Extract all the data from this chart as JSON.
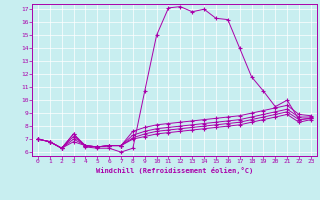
{
  "xlabel": "Windchill (Refroidissement éolien,°C)",
  "background_color": "#c8eef0",
  "line_color": "#aa00aa",
  "xlim": [
    -0.5,
    23.5
  ],
  "ylim": [
    5.7,
    17.4
  ],
  "yticks": [
    6,
    7,
    8,
    9,
    10,
    11,
    12,
    13,
    14,
    15,
    16,
    17
  ],
  "xticks": [
    0,
    1,
    2,
    3,
    4,
    5,
    6,
    7,
    8,
    9,
    10,
    11,
    12,
    13,
    14,
    15,
    16,
    17,
    18,
    19,
    20,
    21,
    22,
    23
  ],
  "series": [
    [
      7.0,
      6.8,
      6.3,
      7.4,
      6.4,
      6.3,
      6.3,
      6.0,
      6.3,
      10.7,
      15.0,
      17.1,
      17.2,
      16.8,
      17.0,
      16.3,
      16.2,
      14.0,
      11.8,
      10.7,
      9.5,
      10.0,
      8.5,
      8.6
    ],
    [
      7.0,
      6.8,
      6.3,
      7.4,
      6.5,
      6.4,
      6.5,
      6.5,
      7.6,
      7.9,
      8.1,
      8.2,
      8.3,
      8.4,
      8.5,
      8.6,
      8.7,
      8.8,
      9.0,
      9.2,
      9.4,
      9.6,
      8.9,
      8.8
    ],
    [
      7.0,
      6.8,
      6.3,
      7.2,
      6.5,
      6.4,
      6.5,
      6.5,
      7.3,
      7.6,
      7.8,
      7.9,
      8.0,
      8.1,
      8.2,
      8.3,
      8.4,
      8.5,
      8.7,
      8.9,
      9.1,
      9.3,
      8.7,
      8.7
    ],
    [
      7.0,
      6.8,
      6.3,
      7.0,
      6.5,
      6.4,
      6.5,
      6.5,
      7.1,
      7.4,
      7.6,
      7.7,
      7.8,
      7.9,
      8.0,
      8.1,
      8.2,
      8.3,
      8.5,
      8.7,
      8.9,
      9.1,
      8.5,
      8.6
    ],
    [
      7.0,
      6.8,
      6.3,
      6.8,
      6.5,
      6.4,
      6.5,
      6.5,
      7.0,
      7.2,
      7.4,
      7.5,
      7.6,
      7.7,
      7.8,
      7.9,
      8.0,
      8.1,
      8.3,
      8.5,
      8.7,
      8.9,
      8.3,
      8.5
    ]
  ]
}
